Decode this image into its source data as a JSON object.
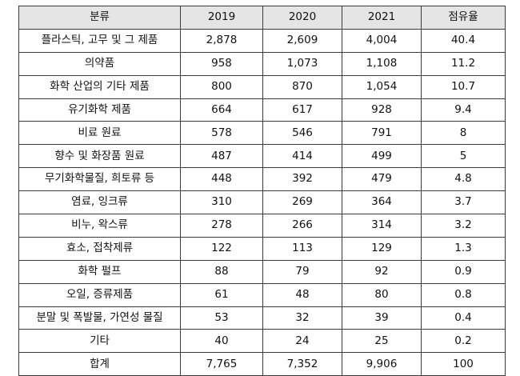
{
  "table": {
    "headers": [
      "분류",
      "2019",
      "2020",
      "2021",
      "점유율"
    ],
    "rows": [
      [
        "플라스틱, 고무 및 그 제품",
        "2,878",
        "2,609",
        "4,004",
        "40.4"
      ],
      [
        "의약품",
        "958",
        "1,073",
        "1,108",
        "11.2"
      ],
      [
        "화학 산업의 기타 제품",
        "800",
        "870",
        "1,054",
        "10.7"
      ],
      [
        "유기화학 제품",
        "664",
        "617",
        "928",
        "9.4"
      ],
      [
        "비료 원료",
        "578",
        "546",
        "791",
        "8"
      ],
      [
        "향수 및 화장품 원료",
        "487",
        "414",
        "499",
        "5"
      ],
      [
        "무기화학물질, 희토류 등",
        "448",
        "392",
        "479",
        "4.8"
      ],
      [
        "염료, 잉크류",
        "310",
        "269",
        "364",
        "3.7"
      ],
      [
        "비누, 왁스류",
        "278",
        "266",
        "314",
        "3.2"
      ],
      [
        "효소, 접착제류",
        "122",
        "113",
        "129",
        "1.3"
      ],
      [
        "화학 펄프",
        "88",
        "79",
        "92",
        "0.9"
      ],
      [
        "오일, 증류제품",
        "61",
        "48",
        "80",
        "0.8"
      ],
      [
        "분말 및 폭발물, 가연성 물질",
        "53",
        "32",
        "39",
        "0.4"
      ],
      [
        "기타",
        "40",
        "24",
        "25",
        "0.2"
      ],
      [
        "합계",
        "7,765",
        "7,352",
        "9,906",
        "100"
      ]
    ]
  }
}
